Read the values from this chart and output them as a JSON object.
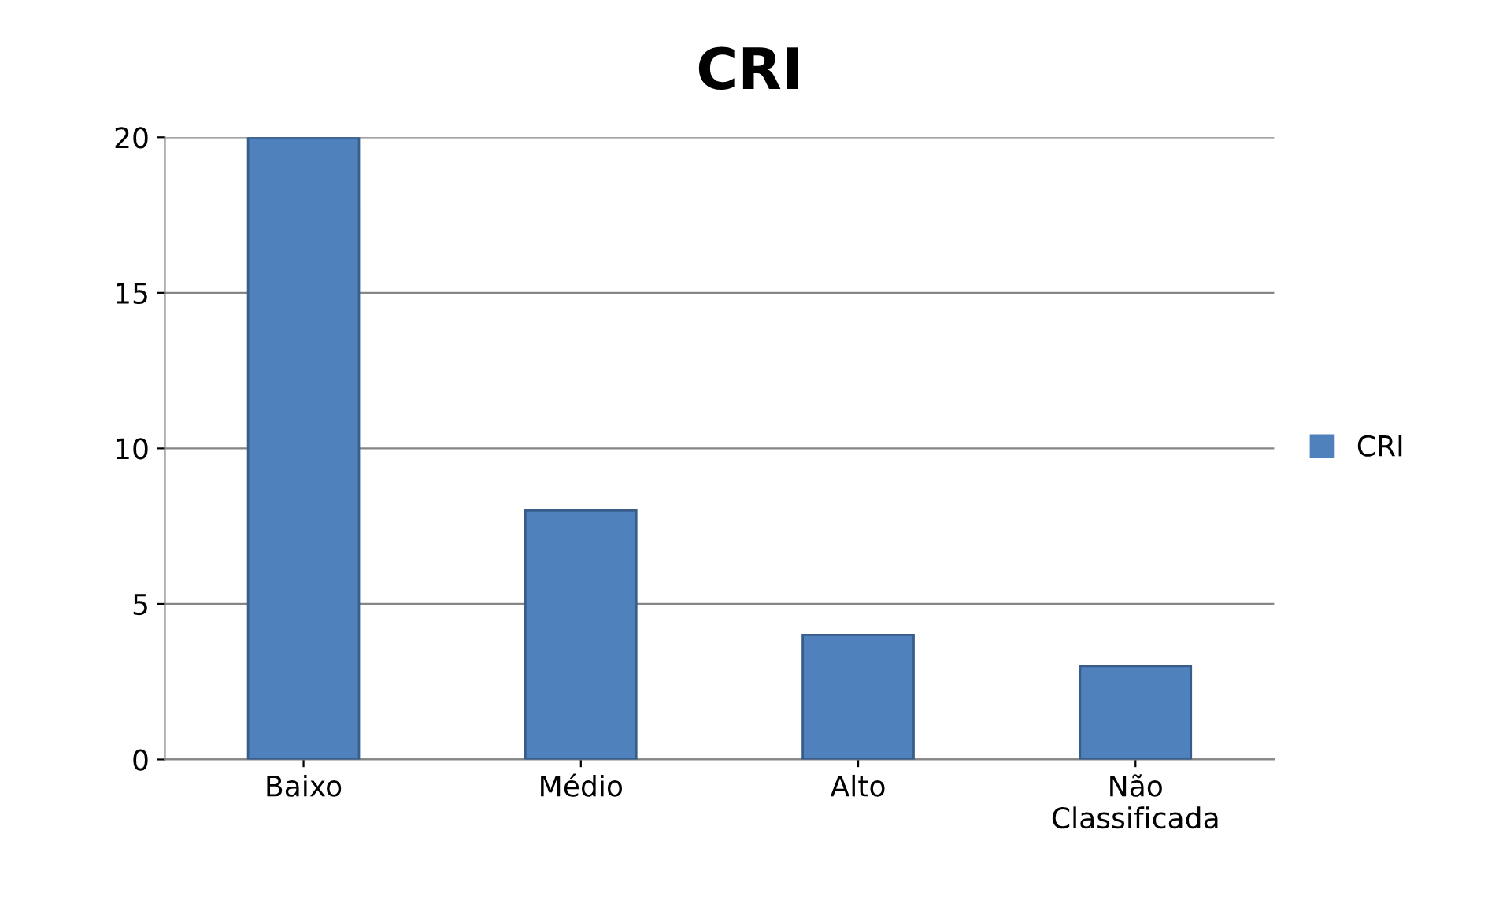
{
  "chart_data": {
    "type": "bar",
    "title": "CRI",
    "categories": [
      "Baixo",
      "Médio",
      "Alto",
      "Não\nClassificada"
    ],
    "series": [
      {
        "name": "CRI",
        "color": "#4f81bd",
        "values": [
          20,
          8,
          4,
          3
        ]
      }
    ],
    "ylim": [
      0,
      20
    ],
    "yticks": [
      0,
      5,
      10,
      15,
      20
    ],
    "grid": "y",
    "legend": "right"
  }
}
